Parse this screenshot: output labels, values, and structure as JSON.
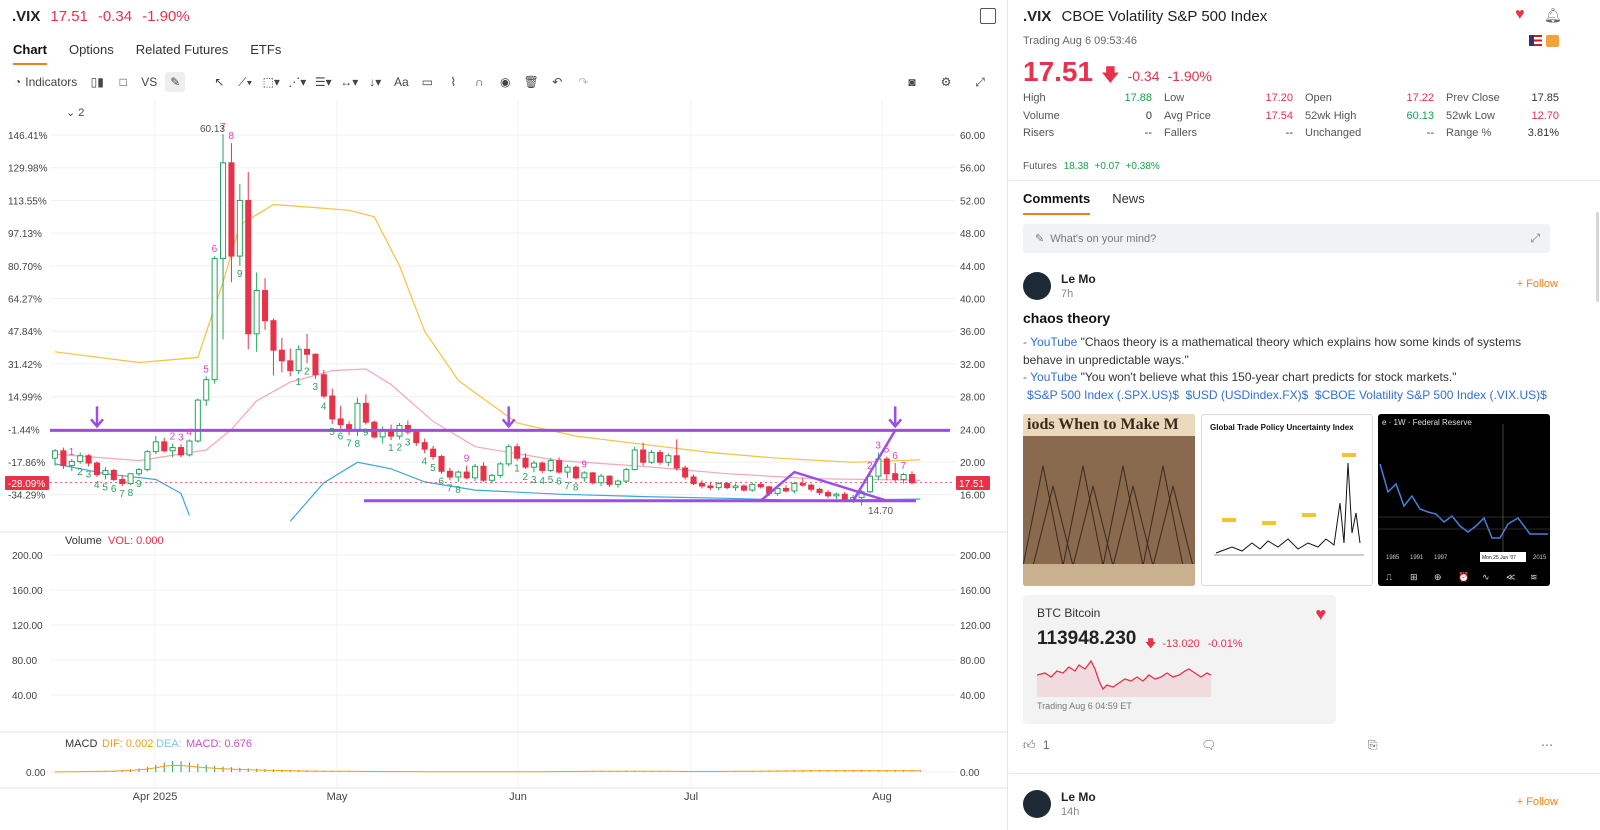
{
  "header": {
    "symbol": ".VIX",
    "price": "17.51",
    "change": "-0.34",
    "change_pct": "-1.90%"
  },
  "chart_tabs": [
    "Chart",
    "Options",
    "Related Futures",
    "ETFs"
  ],
  "toolbar": {
    "indicators_label": "Indicators",
    "vs_label": "VS",
    "text_tool_label": "Aa"
  },
  "chart_panel": {
    "collapse_indicator": "2",
    "volume_title": "Volume",
    "volume_value": "VOL: 0.000",
    "macd_title": "MACD",
    "macd_dif": "DIF: 0.002",
    "macd_dea": "DEA:",
    "macd_value": "MACD: 0.676",
    "high_marker": "60.13",
    "low_marker": "14.70",
    "current_pct_tag": "-28.09%",
    "current_price_tag": "17.51"
  },
  "chart_data": {
    "type": "candlestick",
    "x_labels": [
      "Apr 2025",
      "May",
      "Jun",
      "Jul",
      "Aug"
    ],
    "left_axis_pct": [
      "146.41%",
      "129.98%",
      "113.55%",
      "97.13%",
      "80.70%",
      "64.27%",
      "47.84%",
      "31.42%",
      "14.99%",
      "-1.44%",
      "-17.86%",
      "-34.29%"
    ],
    "right_axis": [
      "60.00",
      "56.00",
      "52.00",
      "48.00",
      "44.00",
      "40.00",
      "36.00",
      "32.00",
      "28.00",
      "24.00",
      "20.00",
      "16.00"
    ],
    "price_ylim": [
      14.0,
      61.0
    ],
    "volume_axis": [
      "200.00",
      "160.00",
      "120.00",
      "80.00",
      "40.00"
    ],
    "macd_axis": [
      "0.00"
    ],
    "candles": [
      [
        20.5,
        21.6,
        19.6,
        21.4
      ],
      [
        21.4,
        21.8,
        19.2,
        19.6
      ],
      [
        19.6,
        20.4,
        18.9,
        20.1
      ],
      [
        20.1,
        21.2,
        19.8,
        20.8
      ],
      [
        20.8,
        21.0,
        19.5,
        19.9
      ],
      [
        19.9,
        20.1,
        18.2,
        18.5
      ],
      [
        18.5,
        19.4,
        17.9,
        19.0
      ],
      [
        19.0,
        19.2,
        17.7,
        17.9
      ],
      [
        17.9,
        18.4,
        17.1,
        17.4
      ],
      [
        17.4,
        18.7,
        17.2,
        18.6
      ],
      [
        18.6,
        19.3,
        18.3,
        19.1
      ],
      [
        19.1,
        21.5,
        18.9,
        21.3
      ],
      [
        21.3,
        23.2,
        21.0,
        22.5
      ],
      [
        22.5,
        23.0,
        21.2,
        21.4
      ],
      [
        21.4,
        22.3,
        20.6,
        21.8
      ],
      [
        21.8,
        22.2,
        20.6,
        20.9
      ],
      [
        20.9,
        22.8,
        20.7,
        22.6
      ],
      [
        22.6,
        27.8,
        22.4,
        27.6
      ],
      [
        27.6,
        30.5,
        26.9,
        30.1
      ],
      [
        30.1,
        45.2,
        29.6,
        44.9
      ],
      [
        44.9,
        60.1,
        35.0,
        56.6
      ],
      [
        56.6,
        59.0,
        42.0,
        45.2
      ],
      [
        45.2,
        54.0,
        44.0,
        52.0
      ],
      [
        52.0,
        55.5,
        33.8,
        35.7
      ],
      [
        35.7,
        43.2,
        33.5,
        41.0
      ],
      [
        41.0,
        42.5,
        36.2,
        37.3
      ],
      [
        37.3,
        37.6,
        30.6,
        33.7
      ],
      [
        33.7,
        35.2,
        31.0,
        32.4
      ],
      [
        32.4,
        33.9,
        30.5,
        31.2
      ],
      [
        31.2,
        34.3,
        30.8,
        33.8
      ],
      [
        33.8,
        35.7,
        32.1,
        33.2
      ],
      [
        33.2,
        33.3,
        30.2,
        30.7
      ],
      [
        30.7,
        31.3,
        27.8,
        28.1
      ],
      [
        28.1,
        29.0,
        24.7,
        25.3
      ],
      [
        25.3,
        26.9,
        24.1,
        24.6
      ],
      [
        24.6,
        25.0,
        23.3,
        23.8
      ],
      [
        23.8,
        27.9,
        23.2,
        27.2
      ],
      [
        27.2,
        28.3,
        24.6,
        24.9
      ],
      [
        24.9,
        25.1,
        22.9,
        23.1
      ],
      [
        23.1,
        24.4,
        22.3,
        24.0
      ],
      [
        24.0,
        24.6,
        22.7,
        23.2
      ],
      [
        23.2,
        24.8,
        22.8,
        24.5
      ],
      [
        24.5,
        25.1,
        23.4,
        23.7
      ],
      [
        23.7,
        24.0,
        22.0,
        22.4
      ],
      [
        22.4,
        22.9,
        21.1,
        21.6
      ],
      [
        21.6,
        22.0,
        20.3,
        20.7
      ],
      [
        20.7,
        20.9,
        18.6,
        18.9
      ],
      [
        18.9,
        19.3,
        17.8,
        18.2
      ],
      [
        18.2,
        19.0,
        17.6,
        18.8
      ],
      [
        18.8,
        19.6,
        17.9,
        18.1
      ],
      [
        18.1,
        19.8,
        17.7,
        19.5
      ],
      [
        19.5,
        20.0,
        17.6,
        17.8
      ],
      [
        17.8,
        18.6,
        17.4,
        18.4
      ],
      [
        18.4,
        20.0,
        18.1,
        19.8
      ],
      [
        19.8,
        22.2,
        19.5,
        21.9
      ],
      [
        21.9,
        22.3,
        20.2,
        20.5
      ],
      [
        20.5,
        21.1,
        19.2,
        19.4
      ],
      [
        19.4,
        20.2,
        18.8,
        19.9
      ],
      [
        19.9,
        20.1,
        18.7,
        19.0
      ],
      [
        19.0,
        20.5,
        18.8,
        20.2
      ],
      [
        20.2,
        20.6,
        18.6,
        18.8
      ],
      [
        18.8,
        19.7,
        18.1,
        19.4
      ],
      [
        19.4,
        19.6,
        17.9,
        18.1
      ],
      [
        18.1,
        18.9,
        17.6,
        18.7
      ],
      [
        18.7,
        18.8,
        17.3,
        17.5
      ],
      [
        17.5,
        18.6,
        17.1,
        18.3
      ],
      [
        18.3,
        18.4,
        17.0,
        17.3
      ],
      [
        17.3,
        17.9,
        16.9,
        17.7
      ],
      [
        17.7,
        19.3,
        17.5,
        19.1
      ],
      [
        19.1,
        21.9,
        19.0,
        21.5
      ],
      [
        21.5,
        22.4,
        19.6,
        20.0
      ],
      [
        20.0,
        21.5,
        19.8,
        21.2
      ],
      [
        21.2,
        21.5,
        19.7,
        20.0
      ],
      [
        20.0,
        21.1,
        19.5,
        20.8
      ],
      [
        20.8,
        22.8,
        19.0,
        19.3
      ],
      [
        19.3,
        19.6,
        17.9,
        18.2
      ],
      [
        18.2,
        18.5,
        17.2,
        17.4
      ],
      [
        17.4,
        17.8,
        16.8,
        17.1
      ],
      [
        17.1,
        17.6,
        16.6,
        16.9
      ],
      [
        16.9,
        17.6,
        16.6,
        17.4
      ],
      [
        17.4,
        17.6,
        16.7,
        16.9
      ],
      [
        16.9,
        17.4,
        16.5,
        17.1
      ],
      [
        17.1,
        17.3,
        16.4,
        16.6
      ],
      [
        16.6,
        17.5,
        16.4,
        17.3
      ],
      [
        17.3,
        17.6,
        16.8,
        17.0
      ],
      [
        17.0,
        17.1,
        15.9,
        16.2
      ],
      [
        16.2,
        17.0,
        15.9,
        16.8
      ],
      [
        16.8,
        17.2,
        16.3,
        16.5
      ],
      [
        16.5,
        17.6,
        16.2,
        17.4
      ],
      [
        17.4,
        18.1,
        17.0,
        17.2
      ],
      [
        17.2,
        17.4,
        16.4,
        16.7
      ],
      [
        16.7,
        16.9,
        16.0,
        16.3
      ],
      [
        16.3,
        16.6,
        15.6,
        15.9
      ],
      [
        15.9,
        16.3,
        15.5,
        16.1
      ],
      [
        16.1,
        16.4,
        15.2,
        15.4
      ],
      [
        15.4,
        16.0,
        15.0,
        15.7
      ],
      [
        15.7,
        16.6,
        14.7,
        16.4
      ],
      [
        16.4,
        18.7,
        16.2,
        18.3
      ],
      [
        18.3,
        21.2,
        17.8,
        20.4
      ],
      [
        20.4,
        20.7,
        17.8,
        18.6
      ],
      [
        18.6,
        19.9,
        17.6,
        17.9
      ],
      [
        17.9,
        18.7,
        17.4,
        18.5
      ],
      [
        18.5,
        18.9,
        17.3,
        17.5
      ]
    ],
    "td_labels": [
      {
        "i": 2,
        "t": "1",
        "c": "#e03cc8"
      },
      {
        "i": 3,
        "t": "2",
        "c": "#22a559"
      },
      {
        "i": 4,
        "t": "3",
        "c": "#22a559"
      },
      {
        "i": 5,
        "t": "4",
        "c": "#22a559"
      },
      {
        "i": 6,
        "t": "5",
        "c": "#22a559"
      },
      {
        "i": 7,
        "t": "6",
        "c": "#22a559"
      },
      {
        "i": 8,
        "t": "7",
        "c": "#22a559"
      },
      {
        "i": 9,
        "t": "8",
        "c": "#22a559"
      },
      {
        "i": 10,
        "t": "9",
        "c": "#22a559"
      },
      {
        "i": 14,
        "t": "2",
        "c": "#e03cc8"
      },
      {
        "i": 15,
        "t": "3",
        "c": "#e03cc8"
      },
      {
        "i": 16,
        "t": "4",
        "c": "#e03cc8"
      },
      {
        "i": 18,
        "t": "5",
        "c": "#e03cc8"
      },
      {
        "i": 19,
        "t": "6",
        "c": "#e03cc8"
      },
      {
        "i": 20,
        "t": "7",
        "c": "#e03cc8"
      },
      {
        "i": 21,
        "t": "8",
        "c": "#e03cc8"
      },
      {
        "i": 22,
        "t": "9",
        "c": "#22a559"
      },
      {
        "i": 29,
        "t": "1",
        "c": "#22a559"
      },
      {
        "i": 30,
        "t": "2",
        "c": "#22a559"
      },
      {
        "i": 31,
        "t": "3",
        "c": "#22a559"
      },
      {
        "i": 32,
        "t": "4",
        "c": "#22a559"
      },
      {
        "i": 33,
        "t": "5",
        "c": "#22a559"
      },
      {
        "i": 34,
        "t": "6",
        "c": "#22a559"
      },
      {
        "i": 35,
        "t": "7",
        "c": "#22a559"
      },
      {
        "i": 36,
        "t": "8",
        "c": "#22a559"
      },
      {
        "i": 37,
        "t": "9",
        "c": "#22a559"
      },
      {
        "i": 40,
        "t": "1",
        "c": "#22a559"
      },
      {
        "i": 41,
        "t": "2",
        "c": "#22a559"
      },
      {
        "i": 42,
        "t": "3",
        "c": "#22a559"
      },
      {
        "i": 44,
        "t": "4",
        "c": "#22a559"
      },
      {
        "i": 45,
        "t": "5",
        "c": "#22a559"
      },
      {
        "i": 46,
        "t": "6",
        "c": "#22a559"
      },
      {
        "i": 47,
        "t": "7",
        "c": "#22a559"
      },
      {
        "i": 48,
        "t": "8",
        "c": "#22a559"
      },
      {
        "i": 49,
        "t": "9",
        "c": "#e03cc8"
      },
      {
        "i": 55,
        "t": "1",
        "c": "#22a559"
      },
      {
        "i": 56,
        "t": "2",
        "c": "#22a559"
      },
      {
        "i": 57,
        "t": "3",
        "c": "#22a559"
      },
      {
        "i": 58,
        "t": "4",
        "c": "#22a559"
      },
      {
        "i": 59,
        "t": "5",
        "c": "#22a559"
      },
      {
        "i": 60,
        "t": "6",
        "c": "#22a559"
      },
      {
        "i": 61,
        "t": "7",
        "c": "#22a559"
      },
      {
        "i": 62,
        "t": "8",
        "c": "#22a559"
      },
      {
        "i": 63,
        "t": "9",
        "c": "#e03cc8"
      },
      {
        "i": 97,
        "t": "2",
        "c": "#e03cc8"
      },
      {
        "i": 98,
        "t": "3",
        "c": "#e03cc8"
      },
      {
        "i": 99,
        "t": "5",
        "c": "#e03cc8"
      },
      {
        "i": 100,
        "t": "6",
        "c": "#e03cc8"
      },
      {
        "i": 101,
        "t": "7",
        "c": "#e03cc8"
      }
    ],
    "ma_yellow": [
      [
        0,
        33.5
      ],
      [
        10,
        32.2
      ],
      [
        17,
        32.8
      ],
      [
        20,
        42.0
      ],
      [
        22,
        49.0
      ],
      [
        26,
        51.5
      ],
      [
        30,
        51.2
      ],
      [
        35,
        50.8
      ],
      [
        38,
        50.0
      ],
      [
        41,
        44.0
      ],
      [
        44,
        36.0
      ],
      [
        48,
        30.0
      ],
      [
        55,
        24.8
      ],
      [
        62,
        23.2
      ],
      [
        70,
        22.2
      ],
      [
        78,
        21.2
      ],
      [
        86,
        20.5
      ],
      [
        95,
        20.0
      ],
      [
        103,
        20.3
      ]
    ],
    "ma_pink": [
      [
        0,
        21.0
      ],
      [
        10,
        20.2
      ],
      [
        18,
        21.5
      ],
      [
        21,
        24.0
      ],
      [
        24,
        27.5
      ],
      [
        28,
        29.8
      ],
      [
        33,
        31.2
      ],
      [
        37,
        31.4
      ],
      [
        40,
        29.5
      ],
      [
        45,
        25.0
      ],
      [
        50,
        21.9
      ],
      [
        60,
        20.2
      ],
      [
        70,
        19.5
      ],
      [
        80,
        18.6
      ],
      [
        90,
        18.0
      ],
      [
        103,
        17.8
      ]
    ],
    "ma_blue_a": [
      [
        0,
        19.8
      ],
      [
        6,
        18.6
      ],
      [
        12,
        17.9
      ],
      [
        15,
        16.2
      ],
      [
        16,
        13.5
      ]
    ],
    "ma_blue_b": [
      [
        28,
        12.8
      ],
      [
        32,
        17.5
      ],
      [
        36,
        20.0
      ],
      [
        40,
        19.2
      ],
      [
        44,
        17.6
      ],
      [
        50,
        16.6
      ],
      [
        60,
        16.1
      ],
      [
        70,
        15.8
      ],
      [
        80,
        15.6
      ],
      [
        90,
        15.3
      ],
      [
        96,
        15.4
      ],
      [
        103,
        15.5
      ]
    ],
    "arrows": [
      5,
      54,
      100
    ],
    "h_line_1": 23.9,
    "h_line_2": 15.3,
    "macd_bars": [
      0.2,
      0.3,
      0.5,
      0.6,
      0.8,
      1.0,
      1.2,
      1.5,
      2.0,
      2.6,
      3.6,
      5.0,
      7.2,
      9.5,
      11.0,
      10.8,
      9.6,
      8.4,
      7.2,
      6.3,
      5.5,
      4.8,
      4.2,
      3.7,
      3.3,
      2.9,
      2.6,
      2.3,
      2.1,
      1.9,
      1.7,
      1.5,
      1.4,
      1.3,
      1.2,
      1.1,
      1.0,
      0.9,
      0.8,
      0.8,
      0.7,
      0.7,
      0.6,
      0.6,
      0.5,
      0.5,
      0.5,
      0.4,
      0.4,
      0.4,
      0.3,
      0.3,
      0.3,
      0.3,
      0.3,
      0.3,
      0.3,
      0.4,
      0.5,
      0.6,
      0.7,
      0.8,
      0.9,
      1.0,
      1.1,
      1.2,
      1.3,
      1.3,
      1.4,
      1.4,
      1.4,
      1.3,
      1.2,
      1.1,
      1.0,
      0.9,
      0.8,
      0.8,
      0.8,
      0.9,
      1.0,
      1.1,
      1.2,
      1.3,
      1.4,
      1.5,
      1.6,
      1.7,
      1.8,
      1.9,
      2.0,
      2.0,
      2.1,
      2.1,
      2.2,
      2.2,
      2.3,
      2.2,
      2.2,
      2.1,
      2.1,
      2.0,
      2.0,
      2.0
    ]
  },
  "quote": {
    "symbol": ".VIX",
    "name": "CBOE Volatility S&P 500 Index",
    "status": "Trading Aug 6 09:53:46",
    "price": "17.51",
    "change": "-0.34",
    "change_pct": "-1.90%",
    "stats": [
      [
        {
          "label": "High",
          "value": "17.88",
          "color": "#16a34a"
        },
        {
          "label": "Low",
          "value": "17.20",
          "color": "#e8324a"
        },
        {
          "label": "Open",
          "value": "17.22",
          "color": "#e8324a"
        },
        {
          "label": "Prev Close",
          "value": "17.85",
          "color": "#333"
        }
      ],
      [
        {
          "label": "Volume",
          "value": "0",
          "color": "#333"
        },
        {
          "label": "Avg Price",
          "value": "17.54",
          "color": "#e8324a"
        },
        {
          "label": "52wk High",
          "value": "60.13",
          "color": "#16a34a"
        },
        {
          "label": "52wk Low",
          "value": "12.70",
          "color": "#e8324a"
        }
      ],
      [
        {
          "label": "Risers",
          "value": "--",
          "color": "#333"
        },
        {
          "label": "Fallers",
          "value": "--",
          "color": "#333"
        },
        {
          "label": "Unchanged",
          "value": "--",
          "color": "#333"
        },
        {
          "label": "Range %",
          "value": "3.81%",
          "color": "#333"
        }
      ]
    ],
    "futures_label": "Futures",
    "futures_price": "18.38",
    "futures_change": "+0.07",
    "futures_pct": "+0.38%"
  },
  "comments": {
    "tabs": [
      "Comments",
      "News"
    ],
    "composer_placeholder": "What's on your mind?",
    "post": {
      "author": "Le Mo",
      "time": "7h",
      "follow": "+ Follow",
      "title": "chaos theory",
      "line1_link": "- YouTube",
      "line1_text": " \"Chaos theory is a mathematical theory which explains how some kinds of systems behave in unpredictable ways.\"",
      "line2_link": "- YouTube",
      "line2_text": " \"You won't believe what this 150-year chart predicts for stock markets.\"",
      "tickers": [
        "$S&P 500 Index (.SPX.US)$",
        "$USD (USDindex.FX)$",
        "$CBOE Volatility S&P 500 Index (.VIX.US)$"
      ],
      "thumb1_caption": "iods When to Make M",
      "thumb2_caption": "Global Trade Policy Uncertainty Index",
      "thumb3_caption": "e · 1W · Federal Reserve",
      "thumb3_tooltip": "Mon 25 Jun '07",
      "thumb3_years": [
        "1985",
        "1991",
        "1997",
        "2015"
      ],
      "btc": {
        "name": "BTC Bitcoin",
        "price": "113948.230",
        "change": "-13.020",
        "change_pct": "-0.01%",
        "status": "Trading  Aug 6 04:59 ET"
      },
      "likes": "1"
    },
    "post2": {
      "author": "Le Mo",
      "time": "14h",
      "follow": "+ Follow"
    }
  }
}
